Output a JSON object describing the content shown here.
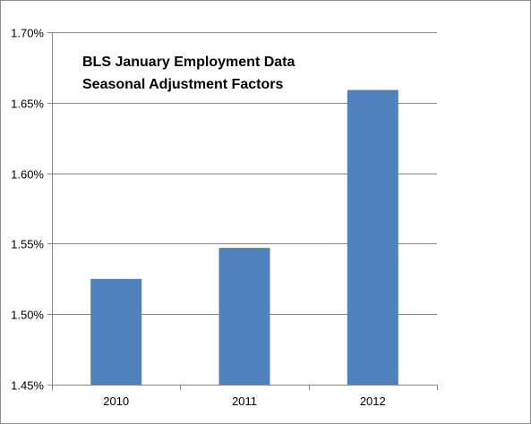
{
  "chart_data": {
    "type": "bar",
    "title_lines": [
      "BLS January  Employment Data",
      "Seasonal  Adjustment  Factors"
    ],
    "categories": [
      "2010",
      "2011",
      "2012"
    ],
    "values": [
      1.525,
      1.547,
      1.659
    ],
    "ylim": [
      1.45,
      1.7
    ],
    "yticks": [
      1.45,
      1.5,
      1.55,
      1.6,
      1.65,
      1.7
    ],
    "ytick_labels": [
      "1.45%",
      "1.50%",
      "1.55%",
      "1.60%",
      "1.65%",
      "1.70%"
    ],
    "xlabel": "",
    "ylabel": "",
    "grid": true,
    "legend": false,
    "colors": {
      "bar": "#4f81bd",
      "grid": "#868686",
      "axis": "#868686"
    }
  }
}
